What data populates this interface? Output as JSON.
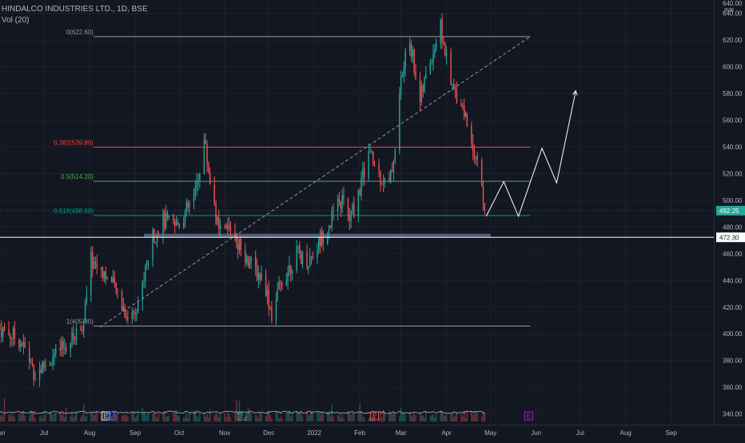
{
  "header": {
    "symbol_line": "HINDALCO INDUSTRIES LTD., 1D, BSE",
    "vol_line": "Vol (20)"
  },
  "colors": {
    "background": "#131722",
    "up": "#26a69a",
    "down": "#ef5350",
    "grid": "#1e222d",
    "axis_text": "#b2b5be",
    "fib_0": "#9598a1",
    "fib_0382": "#f44336",
    "fib_05": "#4caf50",
    "fib_0618": "#089981",
    "fib_1": "#9598a1",
    "support_zone": "#6b7394",
    "price_tag": "#26a69a"
  },
  "chart_data": {
    "type": "candlestick",
    "symbol": "HINDALCO INDUSTRIES LTD.",
    "interval": "1D",
    "exchange": "BSE",
    "currency": "INR",
    "y_range": [
      332,
      650
    ],
    "y_ticks": [
      340,
      360,
      380,
      400,
      420,
      440,
      460,
      480,
      500,
      520,
      540,
      560,
      580,
      600,
      620,
      640
    ],
    "y_top_label": "640.00",
    "x_range": [
      "2021-06-01",
      "2022-09-30"
    ],
    "x_ticks": [
      {
        "date": "2021-06-01",
        "label": "Jun"
      },
      {
        "date": "2021-07-01",
        "label": "Jul"
      },
      {
        "date": "2021-08-01",
        "label": "Aug"
      },
      {
        "date": "2021-09-01",
        "label": "Sep"
      },
      {
        "date": "2021-10-01",
        "label": "Oct"
      },
      {
        "date": "2021-11-01",
        "label": "Nov"
      },
      {
        "date": "2021-12-01",
        "label": "Dec"
      },
      {
        "date": "2022-01-01",
        "label": "2022"
      },
      {
        "date": "2022-02-01",
        "label": "Feb"
      },
      {
        "date": "2022-03-01",
        "label": "Mar"
      },
      {
        "date": "2022-04-01",
        "label": "Apr"
      },
      {
        "date": "2022-05-01",
        "label": "May"
      },
      {
        "date": "2022-06-01",
        "label": "Jun"
      },
      {
        "date": "2022-07-01",
        "label": "Jul"
      },
      {
        "date": "2022-08-01",
        "label": "Aug"
      },
      {
        "date": "2022-09-01",
        "label": "Sep"
      }
    ],
    "current_price": 492.25,
    "current_price_label": "492.25",
    "horizontal_line": 472.3,
    "horizontal_line_label": "472.30",
    "support_zone": {
      "from": "2021-09-07",
      "to": "2022-05-01",
      "low": 472.3,
      "high": 475
    },
    "fib_levels": [
      {
        "ratio": "0",
        "price": 622.6,
        "label": "0(622.60)",
        "color": "#9598a1"
      },
      {
        "ratio": "0.382",
        "price": 539.8,
        "label": "0.382(539.80)",
        "color": "#f44336"
      },
      {
        "ratio": "0.5",
        "price": 514.2,
        "label": "0.5(514.20)",
        "color": "#4caf50"
      },
      {
        "ratio": "0.618",
        "price": 488.6,
        "label": "0.618(488.60)",
        "color": "#089981"
      },
      {
        "ratio": "1",
        "price": 405.8,
        "label": "1(405.80)",
        "color": "#9598a1"
      }
    ],
    "fib_start_date": "2021-08-08",
    "fib_end_date": "2022-05-28",
    "trend_line": [
      {
        "date": "2021-08-08",
        "price": 405
      },
      {
        "date": "2022-05-28",
        "price": 622.6
      }
    ],
    "projection_path": [
      {
        "date": "2022-04-28",
        "price": 488
      },
      {
        "date": "2022-05-10",
        "price": 514
      },
      {
        "date": "2022-05-20",
        "price": 488
      },
      {
        "date": "2022-06-05",
        "price": 539
      },
      {
        "date": "2022-06-15",
        "price": 513
      },
      {
        "date": "2022-06-28",
        "price": 582
      }
    ],
    "event_markers": [
      {
        "date": "2021-08-12",
        "type": "E",
        "color": "#d1d4dc"
      },
      {
        "date": "2021-08-16",
        "type": "D",
        "color": "#2962ff"
      },
      {
        "date": "2021-11-13",
        "type": "E",
        "color": "#26a69a"
      },
      {
        "date": "2022-02-11",
        "type": "E",
        "color": "#ef5350"
      },
      {
        "date": "2022-05-27",
        "type": "E",
        "color": "#9c27b0"
      }
    ],
    "price_anchors": [
      {
        "date": "2021-06-01",
        "price": 404
      },
      {
        "date": "2021-06-15",
        "price": 395
      },
      {
        "date": "2021-06-25",
        "price": 370
      },
      {
        "date": "2021-07-05",
        "price": 380
      },
      {
        "date": "2021-07-20",
        "price": 395
      },
      {
        "date": "2021-07-28",
        "price": 410
      },
      {
        "date": "2021-08-02",
        "price": 455
      },
      {
        "date": "2021-08-10",
        "price": 448
      },
      {
        "date": "2021-08-20",
        "price": 430
      },
      {
        "date": "2021-08-28",
        "price": 410
      },
      {
        "date": "2021-09-05",
        "price": 430
      },
      {
        "date": "2021-09-12",
        "price": 470
      },
      {
        "date": "2021-09-20",
        "price": 485
      },
      {
        "date": "2021-09-28",
        "price": 480
      },
      {
        "date": "2021-10-05",
        "price": 490
      },
      {
        "date": "2021-10-12",
        "price": 505
      },
      {
        "date": "2021-10-18",
        "price": 545
      },
      {
        "date": "2021-10-22",
        "price": 515
      },
      {
        "date": "2021-10-28",
        "price": 475
      },
      {
        "date": "2021-11-05",
        "price": 480
      },
      {
        "date": "2021-11-12",
        "price": 465
      },
      {
        "date": "2021-11-20",
        "price": 450
      },
      {
        "date": "2021-11-28",
        "price": 440
      },
      {
        "date": "2021-12-03",
        "price": 415
      },
      {
        "date": "2021-12-10",
        "price": 440
      },
      {
        "date": "2021-12-20",
        "price": 460
      },
      {
        "date": "2021-12-28",
        "price": 455
      },
      {
        "date": "2022-01-05",
        "price": 470
      },
      {
        "date": "2022-01-12",
        "price": 485
      },
      {
        "date": "2022-01-20",
        "price": 500
      },
      {
        "date": "2022-01-25",
        "price": 485
      },
      {
        "date": "2022-01-31",
        "price": 505
      },
      {
        "date": "2022-02-07",
        "price": 535
      },
      {
        "date": "2022-02-14",
        "price": 520
      },
      {
        "date": "2022-02-21",
        "price": 510
      },
      {
        "date": "2022-02-25",
        "price": 540
      },
      {
        "date": "2022-03-01",
        "price": 590
      },
      {
        "date": "2022-03-07",
        "price": 620
      },
      {
        "date": "2022-03-14",
        "price": 575
      },
      {
        "date": "2022-03-21",
        "price": 605
      },
      {
        "date": "2022-03-28",
        "price": 630
      },
      {
        "date": "2022-04-04",
        "price": 585
      },
      {
        "date": "2022-04-11",
        "price": 575
      },
      {
        "date": "2022-04-18",
        "price": 545
      },
      {
        "date": "2022-04-22",
        "price": 530
      },
      {
        "date": "2022-04-27",
        "price": 492
      }
    ]
  }
}
